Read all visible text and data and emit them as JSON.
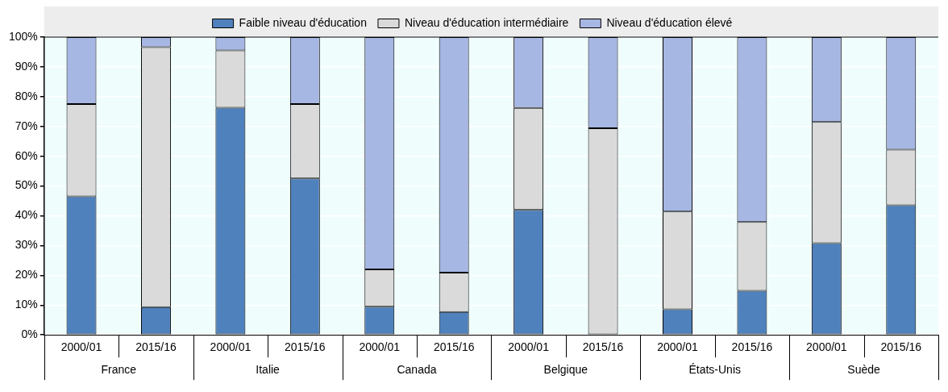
{
  "chart_data": {
    "type": "bar",
    "stacked": true,
    "categories": [
      "2000/01",
      "2015/16",
      "2000/01",
      "2015/16",
      "2000/01",
      "2015/16",
      "2000/01",
      "2015/16",
      "2000/01",
      "2015/16",
      "2000/01",
      "2015/16"
    ],
    "annotations": [
      "France",
      "Italie",
      "Canada",
      "Belgique",
      "États-Unis",
      "Suède"
    ],
    "series": [
      {
        "name": "Faible niveau d'éducation",
        "color": "#4f81bd",
        "values": [
          46.5,
          9.3,
          76.3,
          52.5,
          9.5,
          7.7,
          42.0,
          0,
          8.6,
          14.8,
          30.8,
          43.5
        ]
      },
      {
        "name": "Niveau d'éducation intermédiaire",
        "color": "#dadada",
        "values": [
          31.0,
          87.3,
          19.2,
          25.0,
          12.5,
          13.2,
          34.2,
          69.4,
          32.8,
          23.1,
          40.7,
          18.7
        ]
      },
      {
        "name": "Niveau d'éducation élevé",
        "color": "#a7b7e3",
        "values": [
          22.5,
          3.4,
          4.5,
          22.5,
          78.0,
          79.1,
          23.8,
          30.6,
          58.6,
          62.1,
          28.5,
          37.8
        ]
      }
    ],
    "ylim": [
      0,
      100
    ],
    "yticks": [
      {
        "value": 0,
        "label": "0%"
      },
      {
        "value": 10,
        "label": "10%"
      },
      {
        "value": 20,
        "label": "20%"
      },
      {
        "value": 30,
        "label": "30%"
      },
      {
        "value": 40,
        "label": "40%"
      },
      {
        "value": 50,
        "label": "50%"
      },
      {
        "value": 60,
        "label": "60%"
      },
      {
        "value": 70,
        "label": "70%"
      },
      {
        "value": 80,
        "label": "80%"
      },
      {
        "value": 90,
        "label": "90%"
      },
      {
        "value": 100,
        "label": "100%"
      }
    ],
    "grid": "y",
    "legend": "top"
  }
}
